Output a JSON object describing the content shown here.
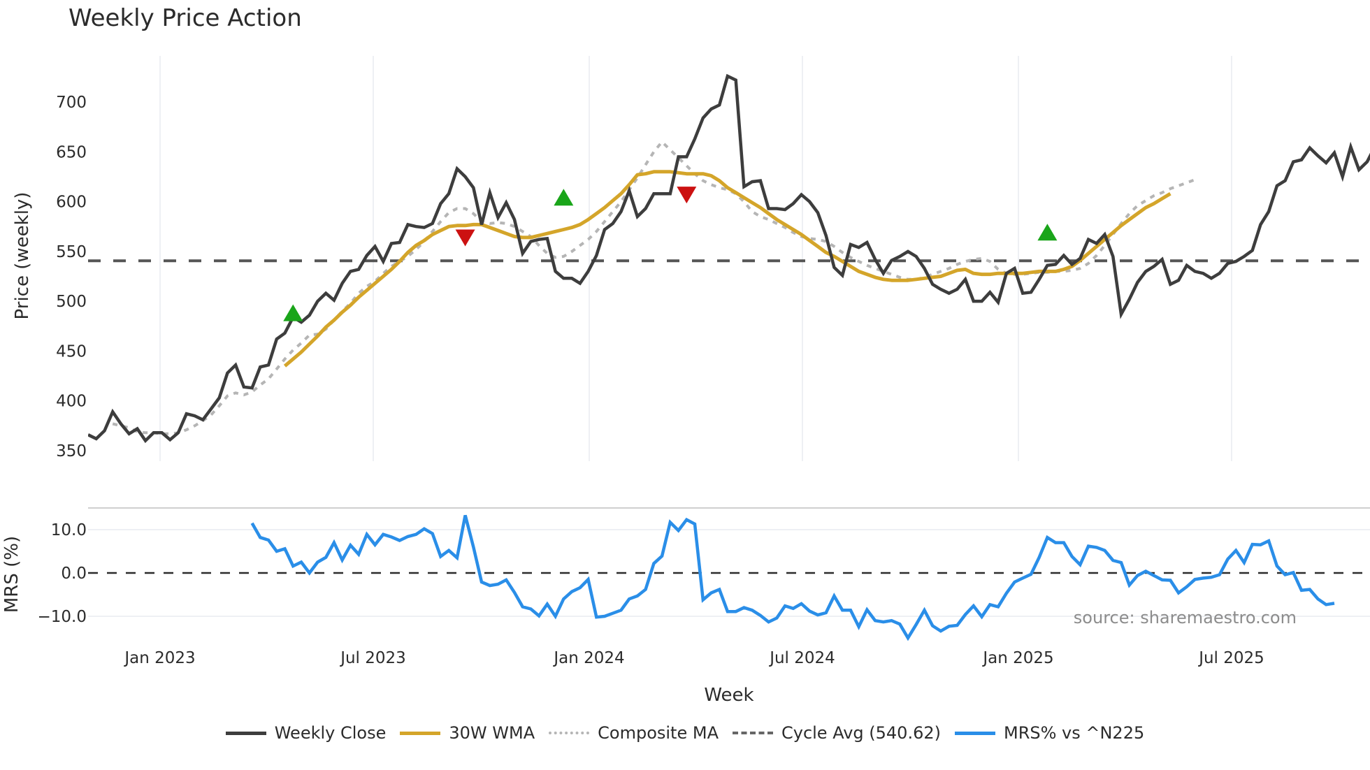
{
  "title": "Weekly Price Action",
  "source": "source: sharemaestro.com",
  "colors": {
    "weekly_close": "#3d3d3d",
    "wma": "#d4a52a",
    "composite": "#b5b5b5",
    "cycle_avg": "#555555",
    "mrs": "#2a8ee8",
    "buy": "#1aa51a",
    "sell": "#cc1111",
    "grid": "#e8ecf1"
  },
  "legend": [
    {
      "key": "weekly_close",
      "label": "Weekly Close",
      "style": "solid"
    },
    {
      "key": "wma",
      "label": "30W WMA",
      "style": "solid"
    },
    {
      "key": "composite",
      "label": "Composite MA",
      "style": "dotted"
    },
    {
      "key": "cycle_avg",
      "label": "Cycle Avg (540.62)",
      "style": "dashed"
    },
    {
      "key": "mrs",
      "label": "MRS% vs ^N225",
      "style": "solid"
    }
  ],
  "chart_data": [
    {
      "type": "line",
      "title": "Weekly Price Action",
      "xlabel": "Week",
      "ylabel": "Price (weekly)",
      "ylim": [
        340,
        740
      ],
      "yticks": [
        350,
        400,
        450,
        500,
        550,
        600,
        650,
        700
      ],
      "xticks": [
        "Jan 2023",
        "Jul 2023",
        "Jan 2024",
        "Jul 2024",
        "Jan 2025",
        "Jul 2025"
      ],
      "grid": true,
      "legend_position": "bottom",
      "reference_line": {
        "name": "Cycle Avg",
        "value": 540.62
      },
      "series": [
        {
          "name": "Weekly Close",
          "start_week_index": 0,
          "values": [
            366,
            362,
            370,
            389,
            377,
            367,
            372,
            360,
            368,
            368,
            361,
            368,
            387,
            385,
            381,
            392,
            403,
            428,
            436,
            414,
            413,
            434,
            436,
            462,
            468,
            484,
            479,
            486,
            500,
            508,
            501,
            518,
            530,
            532,
            546,
            555,
            540,
            558,
            559,
            577,
            575,
            574,
            578,
            598,
            608,
            633,
            625,
            614,
            577,
            609,
            584,
            599,
            582,
            548,
            560,
            562,
            563,
            530,
            523,
            523,
            518,
            530,
            546,
            572,
            578,
            590,
            611,
            585,
            593,
            608,
            608,
            608,
            645,
            645,
            663,
            684,
            693,
            697,
            726,
            722,
            615,
            620,
            621,
            593,
            593,
            592,
            598,
            607,
            600,
            589,
            566,
            534,
            526,
            557,
            554,
            559,
            542,
            528,
            541,
            545,
            550,
            545,
            533,
            517,
            512,
            508,
            512,
            522,
            500,
            500,
            509,
            499,
            528,
            533,
            508,
            509,
            522,
            536,
            537,
            546,
            537,
            543,
            562,
            558,
            567,
            545,
            487,
            502,
            519,
            530,
            535,
            542,
            517,
            521,
            536,
            530,
            528,
            523,
            528,
            538,
            540,
            545,
            551,
            577,
            590,
            616,
            621,
            640,
            642,
            654,
            646,
            639,
            649,
            625,
            655,
            632,
            640,
            656
          ]
        },
        {
          "name": "30W WMA",
          "start_week_index": 24,
          "values": [
            435,
            442,
            449,
            457,
            465,
            474,
            481,
            489,
            496,
            504,
            511,
            518,
            525,
            532,
            540,
            549,
            556,
            561,
            567,
            571,
            575,
            576,
            576,
            577,
            577,
            574,
            571,
            568,
            565,
            564,
            564,
            566,
            568,
            570,
            572,
            574,
            577,
            582,
            588,
            594,
            601,
            608,
            617,
            627,
            628,
            630,
            630,
            630,
            629,
            628,
            628,
            628,
            626,
            621,
            614,
            609,
            604,
            599,
            594,
            588,
            582,
            577,
            572,
            567,
            561,
            555,
            549,
            545,
            540,
            535,
            530,
            527,
            524,
            522,
            521,
            521,
            521,
            522,
            523,
            524,
            525,
            528,
            531,
            532,
            528,
            527,
            527,
            528,
            528,
            528,
            528,
            529,
            530,
            530,
            530,
            532,
            535,
            541,
            548,
            555,
            562,
            569,
            576,
            582,
            588,
            594,
            598,
            603,
            608
          ]
        },
        {
          "name": "Composite MA",
          "start_week_index": 3,
          "values": [
            377,
            375,
            373,
            369,
            368,
            368,
            367,
            367,
            368,
            371,
            375,
            380,
            386,
            395,
            405,
            408,
            406,
            409,
            416,
            422,
            432,
            442,
            451,
            458,
            466,
            467,
            472,
            481,
            490,
            498,
            508,
            515,
            520,
            528,
            535,
            540,
            545,
            552,
            560,
            570,
            580,
            589,
            593,
            593,
            588,
            580,
            578,
            579,
            578,
            575,
            570,
            565,
            556,
            548,
            544,
            545,
            550,
            556,
            562,
            570,
            580,
            590,
            600,
            612,
            624,
            637,
            650,
            660,
            652,
            644,
            636,
            628,
            621,
            617,
            614,
            612,
            608,
            600,
            590,
            585,
            582,
            578,
            574,
            569,
            565,
            563,
            562,
            560,
            555,
            549,
            544,
            540,
            536,
            533,
            530,
            527,
            524,
            522,
            522,
            524,
            527,
            530,
            533,
            537,
            540,
            542,
            543,
            540,
            532,
            528,
            527,
            527,
            528,
            529,
            529,
            530,
            530,
            531,
            533,
            538,
            546,
            556,
            567,
            578,
            588,
            596,
            601,
            606,
            609,
            613,
            616,
            619,
            622
          ]
        },
        {
          "name": "MRS% vs ^N225",
          "start_week_index": 20,
          "axis": "MRS (%)",
          "ylim": [
            -15,
            15
          ],
          "yticks": [
            10.0,
            0.0,
            -10.0
          ],
          "values": [
            11.5,
            8.2,
            7.6,
            5.0,
            5.6,
            1.6,
            2.5,
            0.0,
            2.5,
            3.6,
            7.0,
            3.0,
            6.4,
            4.3,
            8.9,
            6.5,
            8.9,
            8.3,
            7.5,
            8.4,
            8.9,
            10.2,
            9.1,
            3.8,
            5.2,
            3.5,
            13.3,
            6.0,
            -2.1,
            -2.9,
            -2.6,
            -1.6,
            -4.5,
            -7.8,
            -8.3,
            -9.9,
            -7.2,
            -10.0,
            -6.0,
            -4.3,
            -3.4,
            -1.5,
            -10.2,
            -10.0,
            -9.3,
            -8.6,
            -6.0,
            -5.3,
            -3.8,
            2.2,
            3.9,
            11.7,
            9.8,
            12.3,
            11.3,
            -6.2,
            -4.6,
            -3.8,
            -8.9,
            -8.9,
            -8.0,
            -8.6,
            -9.8,
            -11.3,
            -10.4,
            -7.6,
            -8.2,
            -7.1,
            -8.8,
            -9.7,
            -9.2,
            -5.3,
            -8.6,
            -8.6,
            -12.4,
            -8.5,
            -11.0,
            -11.3,
            -11.0,
            -11.8,
            -15.0,
            -11.9,
            -8.6,
            -12.2,
            -13.4,
            -12.3,
            -12.1,
            -9.6,
            -7.6,
            -10.1,
            -7.3,
            -7.8,
            -4.7,
            -2.1,
            -1.2,
            -0.3,
            3.6,
            8.2,
            7.0,
            7.0,
            3.8,
            1.9,
            6.2,
            5.9,
            5.2,
            2.9,
            2.4,
            -2.8,
            -0.6,
            0.4,
            -0.6,
            -1.6,
            -1.7,
            -4.6,
            -3.2,
            -1.5,
            -1.2,
            -1.0,
            -0.4,
            3.2,
            5.2,
            2.4,
            6.6,
            6.5,
            7.4,
            1.6,
            -0.4,
            0.1,
            -4.0,
            -3.8,
            -6.0,
            -7.3,
            -7.0
          ]
        }
      ],
      "markers": [
        {
          "type": "buy",
          "week_index": 25,
          "value": 487
        },
        {
          "type": "sell",
          "week_index": 46,
          "value": 565
        },
        {
          "type": "buy",
          "week_index": 58,
          "value": 603
        },
        {
          "type": "sell",
          "week_index": 73,
          "value": 608
        },
        {
          "type": "buy",
          "week_index": 117,
          "value": 568
        }
      ]
    }
  ]
}
